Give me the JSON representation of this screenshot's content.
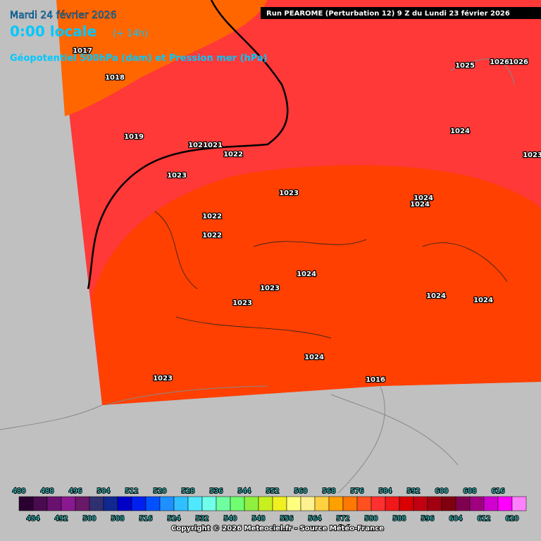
{
  "header": {
    "date": "Mardi 24 février 2026",
    "time": "0:00 locale",
    "lead": "(+ 14h)",
    "parameter": "Géopotentiel 500hPa (dam) et Pression mer (hPa)",
    "run": "Run PEAROME (Perturbation 12) 9 Z du Lundi 23 février 2026"
  },
  "pressure_labels": [
    1017,
    1018,
    1025,
    1026,
    1026,
    1024,
    1019,
    1021,
    1021,
    1022,
    1023,
    1023,
    1023,
    1024,
    1024,
    1022,
    1022,
    1024,
    1023,
    1024,
    1024,
    1023,
    1024,
    1023,
    1016
  ],
  "scale": {
    "top_labels": [
      480,
      488,
      496,
      504,
      512,
      520,
      528,
      536,
      544,
      552,
      560,
      568,
      576,
      584,
      592,
      600,
      608,
      616
    ],
    "bottom_labels": [
      484,
      492,
      500,
      508,
      516,
      524,
      532,
      540,
      548,
      556,
      564,
      572,
      580,
      588,
      596,
      604,
      612,
      620
    ],
    "colors": [
      "#2a0030",
      "#4a0a50",
      "#6a1070",
      "#8a1890",
      "#6a1868",
      "#303070",
      "#102890",
      "#0000c8",
      "#0020f0",
      "#0050ff",
      "#1e90ff",
      "#30c0ff",
      "#50e8ff",
      "#70ffe8",
      "#70ffa0",
      "#70ff70",
      "#90f040",
      "#c8f020",
      "#f0f020",
      "#ffff80",
      "#fff090",
      "#ffd040",
      "#ffa000",
      "#ff7800",
      "#ff5020",
      "#ff3030",
      "#f01818",
      "#d80000",
      "#c00010",
      "#a00010",
      "#800010",
      "#800050",
      "#a00080",
      "#d000d0",
      "#ff00ff",
      "#ff80ff"
    ]
  },
  "footer": {
    "copyright": "Copyright © 2026 Meteociel.fr - Source Météo-France"
  }
}
